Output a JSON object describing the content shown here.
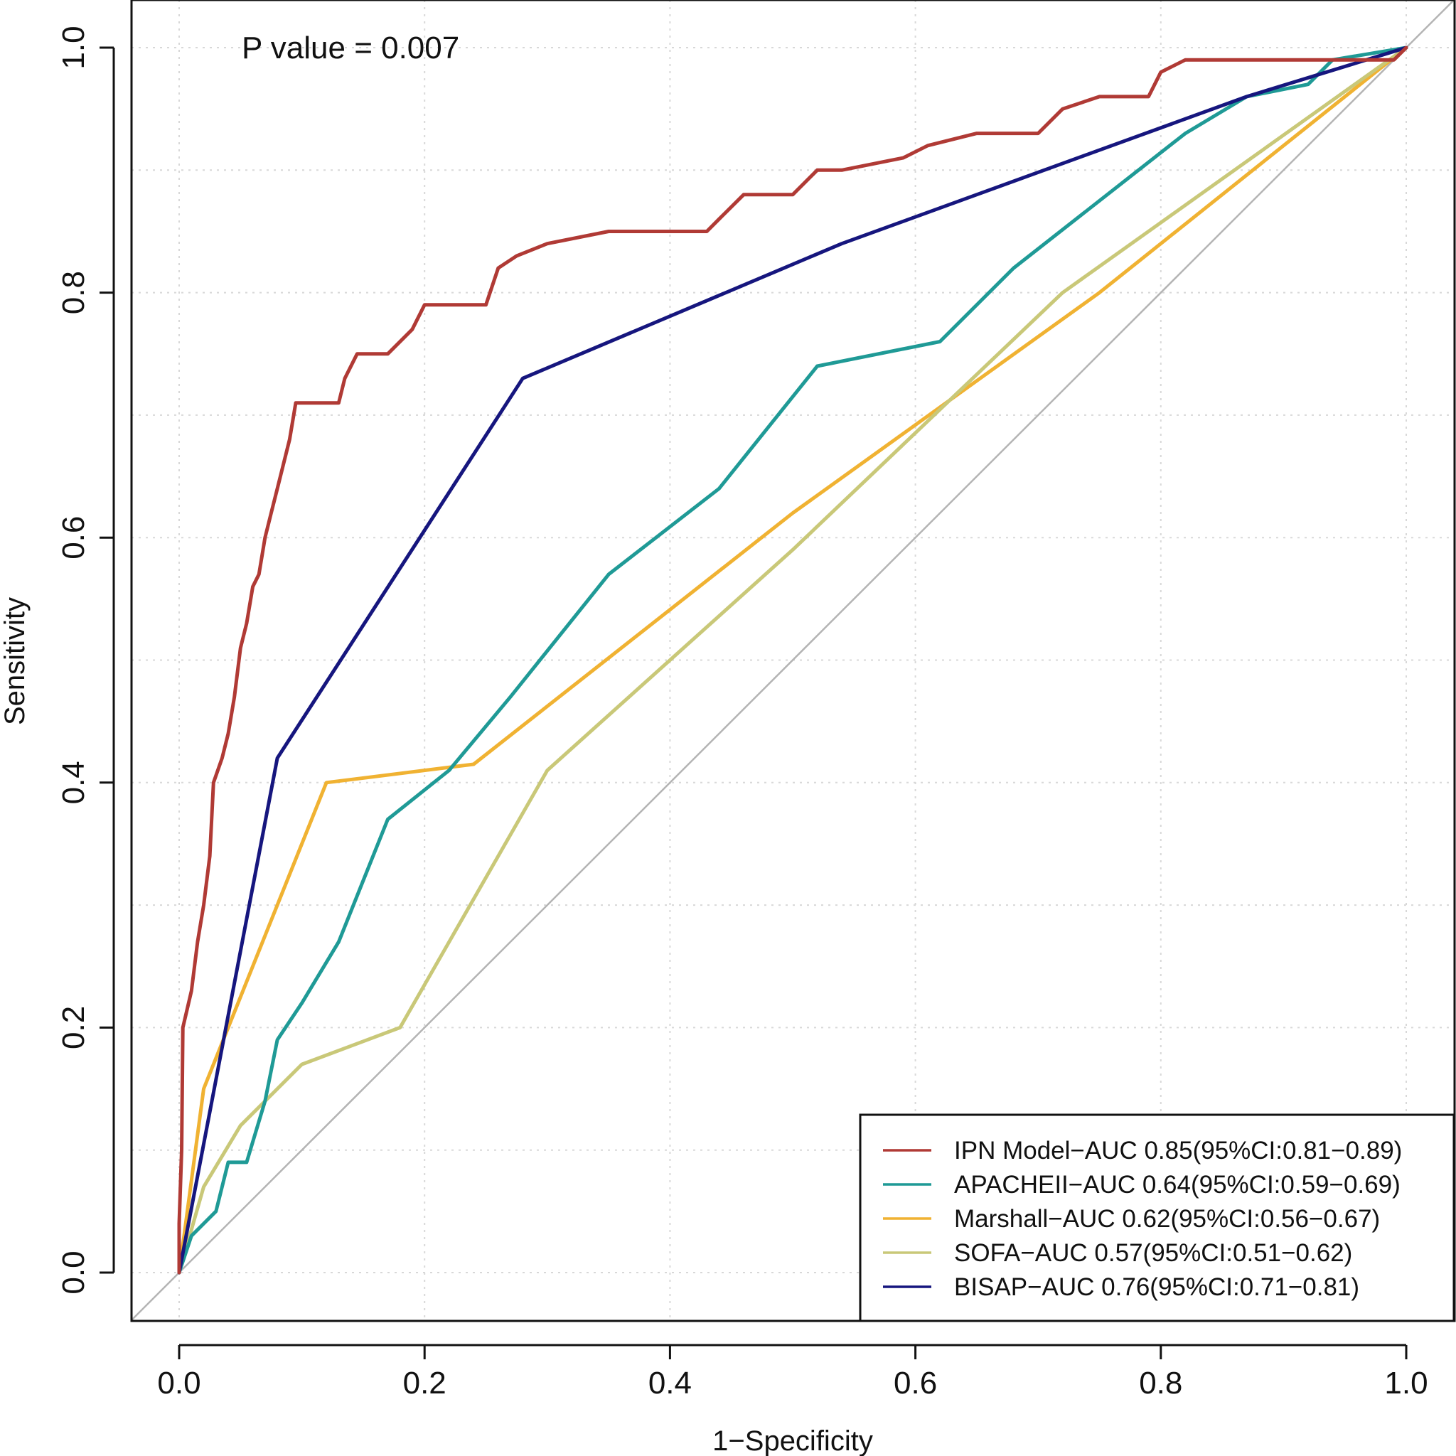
{
  "chart_data": {
    "type": "line",
    "title": "",
    "xlabel": "1−Specificity",
    "ylabel": "Sensitivity",
    "xlim": [
      0,
      1
    ],
    "ylim": [
      0,
      1
    ],
    "x_ticks": [
      "0.0",
      "0.2",
      "0.4",
      "0.6",
      "0.8",
      "1.0"
    ],
    "y_ticks": [
      "0.0",
      "0.2",
      "0.4",
      "0.6",
      "0.8",
      "1.0"
    ],
    "grid": true,
    "diagonal_reference": true,
    "annotation": "P value = 0.007",
    "legend_position": "bottom-right",
    "series": [
      {
        "name": "IPN Model−AUC 0.85(95%CI:0.81−0.89)",
        "color": "#b03a35",
        "points": [
          [
            0,
            0
          ],
          [
            0,
            0.04
          ],
          [
            0.002,
            0.1
          ],
          [
            0.003,
            0.2
          ],
          [
            0.01,
            0.23
          ],
          [
            0.015,
            0.27
          ],
          [
            0.02,
            0.3
          ],
          [
            0.025,
            0.34
          ],
          [
            0.028,
            0.4
          ],
          [
            0.035,
            0.42
          ],
          [
            0.04,
            0.44
          ],
          [
            0.045,
            0.47
          ],
          [
            0.05,
            0.51
          ],
          [
            0.055,
            0.53
          ],
          [
            0.06,
            0.56
          ],
          [
            0.065,
            0.57
          ],
          [
            0.07,
            0.6
          ],
          [
            0.075,
            0.62
          ],
          [
            0.08,
            0.64
          ],
          [
            0.085,
            0.66
          ],
          [
            0.09,
            0.68
          ],
          [
            0.095,
            0.71
          ],
          [
            0.13,
            0.71
          ],
          [
            0.135,
            0.73
          ],
          [
            0.145,
            0.75
          ],
          [
            0.17,
            0.75
          ],
          [
            0.19,
            0.77
          ],
          [
            0.2,
            0.79
          ],
          [
            0.25,
            0.79
          ],
          [
            0.26,
            0.82
          ],
          [
            0.275,
            0.83
          ],
          [
            0.3,
            0.84
          ],
          [
            0.35,
            0.85
          ],
          [
            0.43,
            0.85
          ],
          [
            0.44,
            0.86
          ],
          [
            0.46,
            0.88
          ],
          [
            0.5,
            0.88
          ],
          [
            0.52,
            0.9
          ],
          [
            0.54,
            0.9
          ],
          [
            0.59,
            0.91
          ],
          [
            0.61,
            0.92
          ],
          [
            0.65,
            0.93
          ],
          [
            0.7,
            0.93
          ],
          [
            0.72,
            0.95
          ],
          [
            0.75,
            0.96
          ],
          [
            0.79,
            0.96
          ],
          [
            0.8,
            0.98
          ],
          [
            0.82,
            0.99
          ],
          [
            0.99,
            0.99
          ],
          [
            1,
            1
          ]
        ]
      },
      {
        "name": "APACHEII−AUC 0.64(95%CI:0.59−0.69)",
        "color": "#1f9a96",
        "points": [
          [
            0,
            0
          ],
          [
            0.01,
            0.03
          ],
          [
            0.02,
            0.04
          ],
          [
            0.03,
            0.05
          ],
          [
            0.04,
            0.09
          ],
          [
            0.055,
            0.09
          ],
          [
            0.07,
            0.14
          ],
          [
            0.08,
            0.19
          ],
          [
            0.1,
            0.22
          ],
          [
            0.13,
            0.27
          ],
          [
            0.17,
            0.37
          ],
          [
            0.22,
            0.41
          ],
          [
            0.27,
            0.47
          ],
          [
            0.35,
            0.57
          ],
          [
            0.44,
            0.64
          ],
          [
            0.52,
            0.74
          ],
          [
            0.62,
            0.76
          ],
          [
            0.68,
            0.82
          ],
          [
            0.82,
            0.93
          ],
          [
            0.87,
            0.96
          ],
          [
            0.92,
            0.97
          ],
          [
            0.94,
            0.99
          ],
          [
            1,
            1
          ]
        ]
      },
      {
        "name": "Marshall−AUC 0.62(95%CI:0.56−0.67)",
        "color": "#f0b232",
        "points": [
          [
            0,
            0
          ],
          [
            0.02,
            0.15
          ],
          [
            0.12,
            0.4
          ],
          [
            0.24,
            0.415
          ],
          [
            0.5,
            0.62
          ],
          [
            0.75,
            0.8
          ],
          [
            1,
            1
          ]
        ]
      },
      {
        "name": "SOFA−AUC 0.57(95%CI:0.51−0.62)",
        "color": "#c9c878",
        "points": [
          [
            0,
            0
          ],
          [
            0.02,
            0.07
          ],
          [
            0.05,
            0.12
          ],
          [
            0.1,
            0.17
          ],
          [
            0.18,
            0.2
          ],
          [
            0.3,
            0.41
          ],
          [
            0.5,
            0.59
          ],
          [
            0.72,
            0.8
          ],
          [
            1,
            1
          ]
        ]
      },
      {
        "name": "BISAP−AUC 0.76(95%CI:0.71−0.81)",
        "color": "#16167e",
        "points": [
          [
            0,
            0
          ],
          [
            0.08,
            0.42
          ],
          [
            0.28,
            0.73
          ],
          [
            0.54,
            0.84
          ],
          [
            0.87,
            0.96
          ],
          [
            1,
            1
          ]
        ]
      }
    ]
  }
}
